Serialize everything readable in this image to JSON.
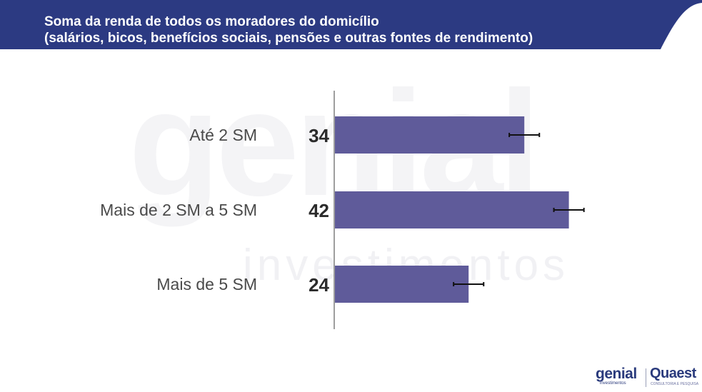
{
  "header": {
    "title_line1": "Soma da renda de todos os moradores do domicílio",
    "title_line2": "(salários, bicos, benefícios sociais, pensões e outras fontes de rendimento)"
  },
  "colors": {
    "header_bg": "#2c3a82",
    "bar": "#5f5b9a",
    "axis": "#9e9e9e",
    "error_bar": "#111111"
  },
  "watermark": {
    "main": "genial",
    "sub": "investimentos"
  },
  "chart_data": {
    "type": "bar",
    "orientation": "horizontal",
    "categories": [
      "Até 2 SM",
      "Mais de 2 SM a 5 SM",
      "Mais de 5 SM"
    ],
    "values": [
      34,
      42,
      24
    ],
    "value_labels": [
      "34",
      "42",
      "24"
    ],
    "error_margin": 2.7,
    "xlim": [
      0,
      50
    ],
    "grid": false,
    "legend": "none"
  },
  "logos": {
    "genial": "genial",
    "genial_sub": "investimentos",
    "quaest": "Quaest",
    "quaest_sub": "CONSULTORIA E PESQUISA"
  }
}
